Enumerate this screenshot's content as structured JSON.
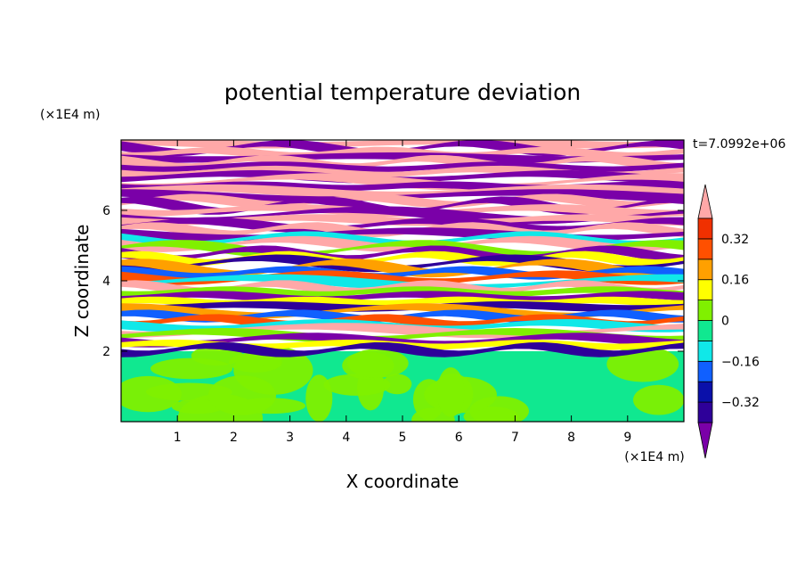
{
  "chart_data": {
    "type": "heatmap",
    "title": "potential temperature deviation",
    "xlabel": "X coordinate",
    "ylabel": "Z coordinate",
    "x_unit": "(×1E4 m)",
    "y_unit": "(×1E4 m)",
    "time_label": "t=7.0992e+06",
    "xlim": [
      0,
      10
    ],
    "ylim": [
      0,
      8
    ],
    "x_ticks": [
      1,
      2,
      3,
      4,
      5,
      6,
      7,
      8,
      9
    ],
    "y_ticks": [
      2,
      4,
      6
    ],
    "x_tick_labels": [
      "1",
      "2",
      "3",
      "4",
      "5",
      "6",
      "7",
      "8",
      "9"
    ],
    "y_tick_labels": [
      "2",
      "4",
      "6"
    ],
    "colorbar": {
      "levels": [
        -0.4,
        -0.32,
        -0.24,
        -0.16,
        -0.08,
        0,
        0.08,
        0.16,
        0.24,
        0.32,
        0.4
      ],
      "tick_values": [
        -0.32,
        -0.16,
        0,
        0.16,
        0.32
      ],
      "tick_labels": [
        "−0.32",
        "−0.16",
        "0",
        "0.16",
        "0.32"
      ],
      "colors": [
        "#7a00a8",
        "#2e0099",
        "#0a10aa",
        "#1060ff",
        "#10e8e8",
        "#10e890",
        "#80f000",
        "#ffff00",
        "#ffa000",
        "#ff5000",
        "#f03000",
        "#ffa8a8"
      ],
      "extend": "both"
    },
    "layers": [
      {
        "zmin": 0,
        "zmax": 2,
        "description_colors": [
          "#10e890",
          "#80f000"
        ]
      },
      {
        "zmin": 2,
        "zmax": 8,
        "description_colors": [
          "#ffa8a8",
          "#7a00a8",
          "#2e0099",
          "#1060ff",
          "#10e8e8",
          "#80f000",
          "#ffff00",
          "#ffa000",
          "#ff5000"
        ]
      }
    ]
  }
}
